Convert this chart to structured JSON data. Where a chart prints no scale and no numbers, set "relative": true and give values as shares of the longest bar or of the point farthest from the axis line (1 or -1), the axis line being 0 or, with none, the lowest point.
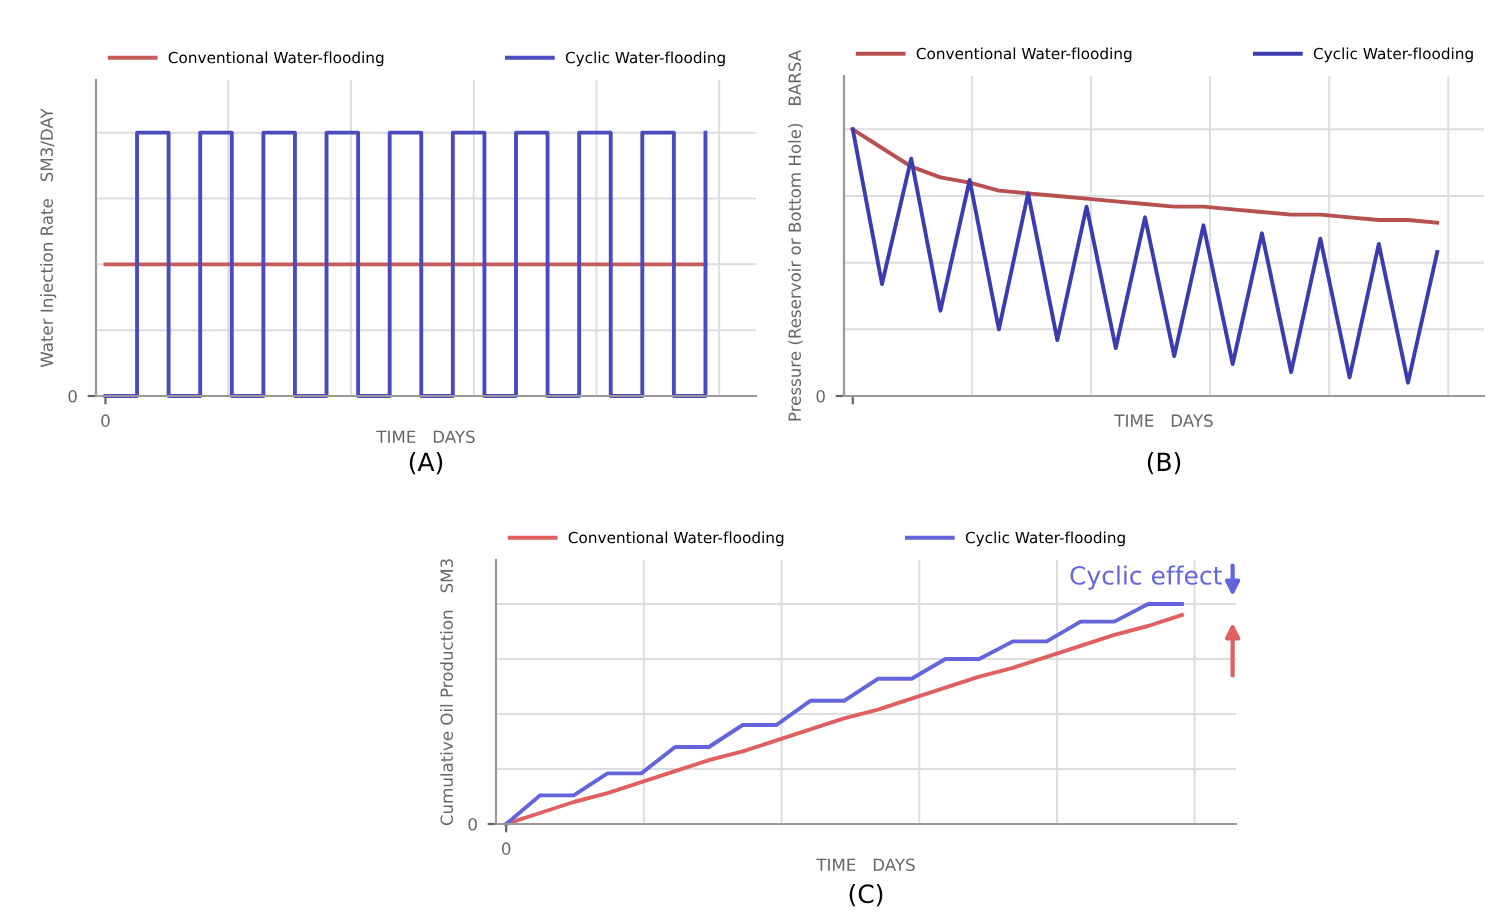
{
  "chart_data": [
    {
      "type": "step",
      "title": "(A)",
      "xlabel": "TIME   DAYS",
      "ylabel": "Water Injection Rate   SM3/DAY",
      "relative": true,
      "legend": "top",
      "grid": true,
      "annotations": [
        "0",
        "0"
      ],
      "categories": [
        null,
        null,
        null,
        null,
        null,
        null,
        null,
        null,
        null,
        null,
        null,
        null,
        null,
        null,
        null,
        null,
        null,
        null,
        null,
        null
      ],
      "series": [
        {
          "name": "Conventional Water-flooding",
          "color": "#c85a5a",
          "values": [
            0.5,
            0.5,
            0.5,
            0.5,
            0.5,
            0.5,
            0.5,
            0.5,
            0.5,
            0.5,
            0.5,
            0.5,
            0.5,
            0.5,
            0.5,
            0.5,
            0.5,
            0.5,
            0.5,
            0.5
          ]
        },
        {
          "name": "Cyclic Water-flooding",
          "color": "#4b4bbf",
          "values": [
            0,
            1,
            0,
            1,
            0,
            1,
            0,
            1,
            0,
            1,
            0,
            1,
            0,
            1,
            0,
            1,
            0,
            1,
            0,
            1
          ]
        }
      ]
    },
    {
      "type": "line",
      "title": "(B)",
      "xlabel": "TIME   DAYS",
      "ylabel": "Pressure (Reservoir or Bottom Hole)   BARSA",
      "relative": true,
      "legend": "top",
      "grid": true,
      "annotations": [
        "0"
      ],
      "categories": [
        null,
        null,
        null,
        null,
        null,
        null,
        null,
        null,
        null,
        null,
        null,
        null,
        null,
        null,
        null,
        null,
        null,
        null,
        null,
        null,
        null
      ],
      "series": [
        {
          "name": "Conventional Water-flooding",
          "color": "#b85050",
          "values": [
            1,
            0.93,
            0.86,
            0.82,
            0.8,
            0.77,
            0.76,
            0.75,
            0.74,
            0.73,
            0.72,
            0.71,
            0.71,
            0.7,
            0.69,
            0.68,
            0.68,
            0.67,
            0.66,
            0.66,
            0.65
          ]
        },
        {
          "name": "Cyclic Water-flooding",
          "color": "#3c3cb0",
          "values": [
            1,
            0.42,
            0.89,
            0.32,
            0.81,
            0.25,
            0.76,
            0.21,
            0.71,
            0.18,
            0.67,
            0.15,
            0.64,
            0.12,
            0.61,
            0.09,
            0.59,
            0.07,
            0.57,
            0.05,
            0.54
          ]
        }
      ]
    },
    {
      "type": "line",
      "title": "(C)",
      "xlabel": "TIME   DAYS",
      "ylabel": "Cumulative Oil Production   SM3",
      "relative": true,
      "legend": "top",
      "grid": true,
      "annotations": [
        "0",
        "0",
        "Cyclic effect"
      ],
      "categories": [
        null,
        null,
        null,
        null,
        null,
        null,
        null,
        null,
        null,
        null,
        null,
        null,
        null,
        null,
        null,
        null,
        null,
        null,
        null,
        null,
        null
      ],
      "series": [
        {
          "name": "Conventional Water-flooding",
          "color": "#e06060",
          "values": [
            0,
            0.05,
            0.1,
            0.14,
            0.19,
            0.24,
            0.29,
            0.33,
            0.38,
            0.43,
            0.48,
            0.52,
            0.57,
            0.62,
            0.67,
            0.71,
            0.76,
            0.81,
            0.86,
            0.9,
            0.95
          ]
        },
        {
          "name": "Cyclic Water-flooding",
          "color": "#6464dc",
          "values": [
            0,
            0.13,
            0.13,
            0.23,
            0.23,
            0.35,
            0.35,
            0.45,
            0.45,
            0.56,
            0.56,
            0.66,
            0.66,
            0.75,
            0.75,
            0.83,
            0.83,
            0.92,
            0.92,
            1,
            1
          ]
        }
      ]
    }
  ]
}
